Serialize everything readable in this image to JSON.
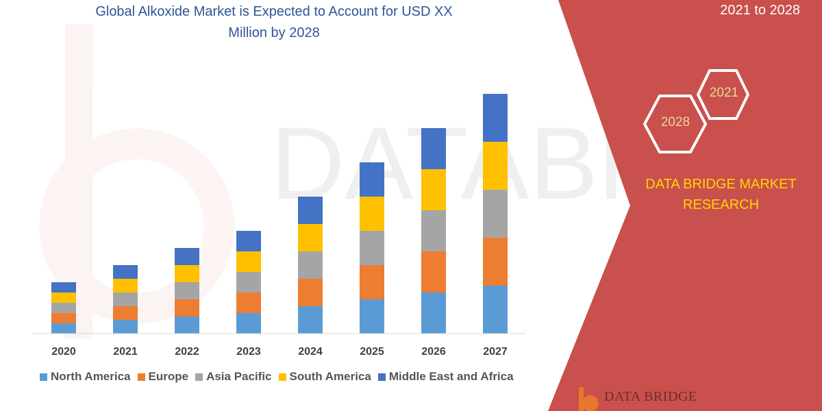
{
  "title_line1": "Global Alkoxide Market is Expected to Account for USD XX",
  "title_line2": "Million by 2028",
  "period": "2021 to 2028",
  "badge_year_top": "2021",
  "badge_year_bottom": "2028",
  "brand_line1": "DATA BRIDGE MARKET",
  "brand_line2": "RESEARCH",
  "footer_logo_text": "DATA BRIDGE",
  "colors": {
    "title": "#2f5597",
    "panel": "#c9504c",
    "brand_text": "#ffd500"
  },
  "chart_data": {
    "type": "bar",
    "stacked": true,
    "categories": [
      "2020",
      "2021",
      "2022",
      "2023",
      "2024",
      "2025",
      "2026",
      "2027"
    ],
    "series": [
      {
        "name": "North America",
        "color": "#5b9bd5",
        "values": [
          3,
          4,
          5,
          6,
          8,
          10,
          12,
          14
        ]
      },
      {
        "name": "Europe",
        "color": "#ed7d31",
        "values": [
          3,
          4,
          5,
          6,
          8,
          10,
          12,
          14
        ]
      },
      {
        "name": "Asia Pacific",
        "color": "#a5a5a5",
        "values": [
          3,
          4,
          5,
          6,
          8,
          10,
          12,
          14
        ]
      },
      {
        "name": "South America",
        "color": "#ffc000",
        "values": [
          3,
          4,
          5,
          6,
          8,
          10,
          12,
          14
        ]
      },
      {
        "name": "Middle East and Africa",
        "color": "#4472c4",
        "values": [
          3,
          4,
          5,
          6,
          8,
          10,
          12,
          14
        ]
      }
    ],
    "ylim": [
      0,
      72
    ],
    "grid": false,
    "legend_position": "bottom"
  }
}
